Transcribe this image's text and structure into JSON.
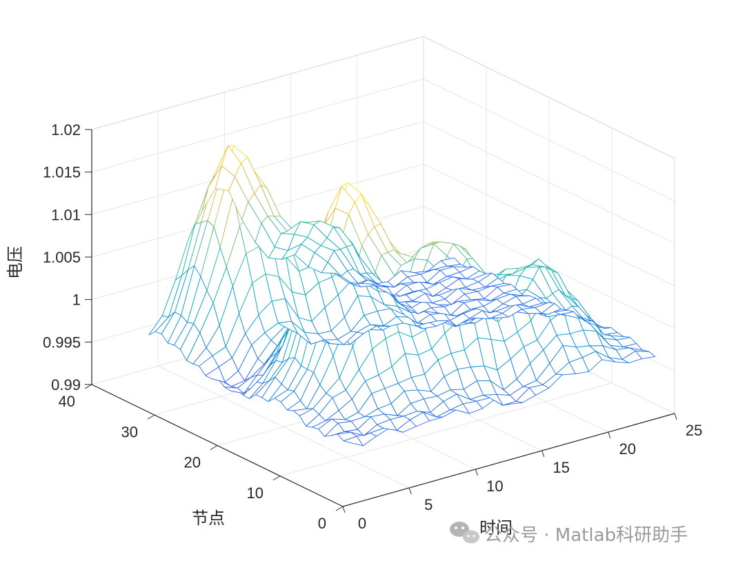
{
  "chart_data": {
    "type": "surface-mesh",
    "xlabel": "时间",
    "ylabel": "节点",
    "zlabel": "电压",
    "xlim": [
      0,
      25
    ],
    "ylim": [
      0,
      40
    ],
    "zlim": [
      0.99,
      1.02
    ],
    "xticks": [
      "0",
      "5",
      "10",
      "15",
      "20",
      "25"
    ],
    "yticks": [
      "0",
      "10",
      "20",
      "30",
      "40"
    ],
    "zticks": [
      "0.99",
      "0.995",
      "1",
      "1.005",
      "1.01",
      "1.015",
      "1.02"
    ],
    "grid": true,
    "colormap": "parula",
    "x_range_data": [
      1,
      24
    ],
    "y_range_data": [
      1,
      33
    ],
    "peaks": [
      {
        "x": 6,
        "y": 30,
        "z": 1.0185
      },
      {
        "x": 7,
        "y": 14,
        "z": 1.0195
      },
      {
        "x": 12,
        "y": 28,
        "z": 1.0078
      },
      {
        "x": 13,
        "y": 11,
        "z": 1.0112
      },
      {
        "x": 19,
        "y": 9,
        "z": 1.0068
      }
    ],
    "baseline_z": 0.9965,
    "min_z": 0.9925
  },
  "watermark": {
    "text": "公众号 · Matlab科研助手",
    "icon": "wechat-icon"
  }
}
